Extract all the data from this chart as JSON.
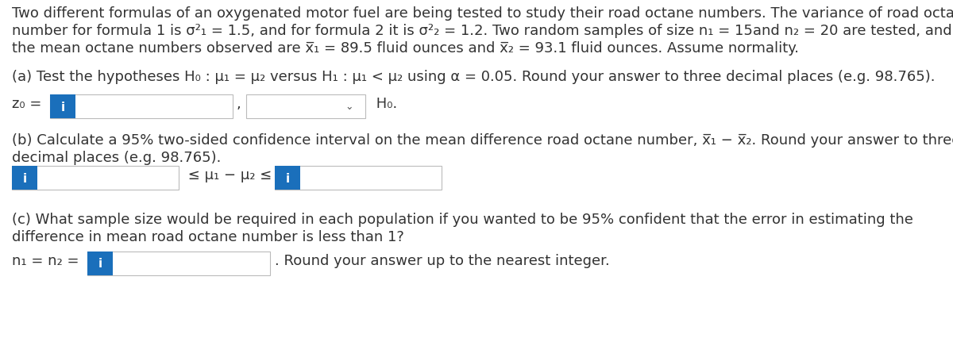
{
  "bg_color": "#ffffff",
  "text_color": "#333333",
  "blue_bg": "#1a6fbb",
  "box_border": "#bbbbbb",
  "font_size": 13.0,
  "line1": "Two different formulas of an oxygenated motor fuel are being tested to study their road octane numbers. The variance of road octane",
  "line2": "number for formula 1 is σ²₁ = 1.5, and for formula 2 it is σ²₂ = 1.2. Two random samples of size n₁ = 15and n₂ = 20 are tested, and",
  "line3": "the mean octane numbers observed are x̅₁ = 89.5 fluid ounces and x̅₂ = 93.1 fluid ounces. Assume normality.",
  "part_a": "(a) Test the hypotheses H₀ : μ₁ = μ₂ versus H₁ : μ₁ < μ₂ using α = 0.05. Round your answer to three decimal places (e.g. 98.765).",
  "z0_label": "z₀ =",
  "comma": ",",
  "h0_label": " H₀.",
  "part_b1": "(b) Calculate a 95% two-sided confidence interval on the mean difference road octane number, x̅₁ − x̅₂. Round your answer to three",
  "part_b2": "decimal places (e.g. 98.765).",
  "leq_mu": " ≤ μ₁ − μ₂ ≤ ",
  "part_c1": "(c) What sample size would be required in each population if you wanted to be 95% confident that the error in estimating the",
  "part_c2": "difference in mean road octane number is less than 1?",
  "n1n2_label": "n₁ = n₂ = ",
  "round_note": ". Round your answer up to the nearest integer.",
  "i_label": "i",
  "arrow": "∨"
}
